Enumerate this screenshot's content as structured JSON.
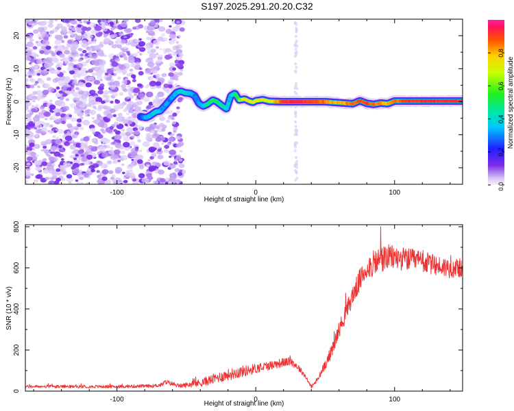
{
  "title": "S197.2025.291.20.20.C32",
  "colors": {
    "axis": "#000000",
    "snr_line": "#ee3333",
    "speckle_light": "#d8c8f8",
    "speckle_dark": "#6a18e6"
  },
  "chart_data": [
    {
      "type": "heatmap",
      "name": "spectrogram",
      "xlabel": "Height of straight line (km)",
      "ylabel": "Frequency (Hz)",
      "xlim": [
        -166,
        149
      ],
      "ylim": [
        -25,
        25
      ],
      "x_ticks": [
        -100,
        0,
        100
      ],
      "y_ticks": [
        -20,
        -10,
        0,
        10,
        20
      ],
      "noise_region_km": [
        -166,
        -53
      ],
      "faint_vertical_band_km": 29,
      "ridge": {
        "description": "Dominant frequency ridge, x in km, y in Hz, amp normalized 0-1",
        "x": [
          -83,
          -79,
          -76,
          -72,
          -69,
          -66,
          -61,
          -57,
          -54,
          -51,
          -47,
          -44,
          -41,
          -38,
          -35,
          -31,
          -28,
          -25,
          -21,
          -18,
          -15,
          -12,
          -8,
          -5,
          -2,
          0,
          5,
          10,
          20,
          30,
          40,
          50,
          60,
          70,
          75,
          80,
          85,
          90,
          95,
          100,
          110,
          120,
          130,
          140,
          149
        ],
        "y": [
          -4.5,
          -4.8,
          -4.2,
          -3.0,
          -2.8,
          -1.5,
          1.0,
          2.8,
          3.2,
          2.7,
          2.5,
          1.8,
          -0.5,
          -1.3,
          -0.8,
          0.5,
          0.0,
          -1.0,
          -2.2,
          1.8,
          2.5,
          0.5,
          0.8,
          0.2,
          -0.2,
          0.3,
          0.6,
          0.1,
          0.0,
          0.0,
          0.0,
          0.0,
          -0.3,
          -0.6,
          0.3,
          -0.5,
          -0.8,
          -0.4,
          -0.6,
          0.2,
          0.2,
          0.2,
          0.2,
          0.2,
          0.2
        ],
        "amp": [
          0.25,
          0.35,
          0.35,
          0.4,
          0.35,
          0.3,
          0.3,
          0.35,
          0.4,
          0.4,
          0.35,
          0.3,
          0.3,
          0.35,
          0.45,
          0.5,
          0.5,
          0.45,
          0.4,
          0.35,
          0.45,
          0.6,
          0.75,
          0.75,
          0.7,
          0.7,
          0.75,
          0.7,
          0.9,
          0.95,
          0.9,
          0.85,
          0.8,
          0.85,
          0.9,
          0.9,
          0.85,
          0.85,
          0.8,
          0.85,
          0.92,
          0.92,
          0.92,
          0.92,
          0.92
        ]
      },
      "colorbar": {
        "label": "Normalized spectral amplitude",
        "range": [
          0,
          1
        ],
        "ticks": [
          0.0,
          0.2,
          0.4,
          0.6,
          0.8
        ],
        "tick_labels": [
          "0.0",
          "0.2",
          "0.4",
          "0.6",
          "0.8"
        ]
      }
    },
    {
      "type": "line",
      "name": "snr",
      "xlabel": "Height of straight line (km)",
      "ylabel": "SNR (10 * v/v)",
      "xlim": [
        -166,
        149
      ],
      "ylim": [
        0,
        810
      ],
      "x_ticks": [
        -100,
        0,
        100
      ],
      "y_ticks": [
        0,
        200,
        400,
        600,
        800
      ],
      "envelope": {
        "description": "Mean SNR trend and noise amplitude; line drawn with fluctuations around mean",
        "x": [
          -166,
          -140,
          -100,
          -75,
          -68,
          -65,
          -55,
          -40,
          -30,
          -20,
          -10,
          0,
          10,
          20,
          25,
          30,
          35,
          40,
          45,
          50,
          55,
          60,
          65,
          70,
          75,
          80,
          85,
          90,
          95,
          100,
          110,
          120,
          130,
          140,
          149
        ],
        "mean": [
          22,
          22,
          22,
          25,
          30,
          45,
          25,
          40,
          60,
          80,
          95,
          110,
          125,
          140,
          145,
          120,
          80,
          20,
          60,
          130,
          200,
          300,
          380,
          470,
          540,
          600,
          620,
          640,
          650,
          650,
          640,
          630,
          610,
          600,
          600
        ],
        "noise": [
          7,
          7,
          7,
          8,
          10,
          12,
          10,
          20,
          25,
          28,
          28,
          25,
          22,
          22,
          20,
          18,
          12,
          8,
          15,
          25,
          35,
          40,
          45,
          50,
          55,
          60,
          65,
          70,
          65,
          60,
          55,
          55,
          50,
          50,
          45
        ]
      },
      "peak": {
        "x": 90,
        "y": 800
      }
    }
  ]
}
